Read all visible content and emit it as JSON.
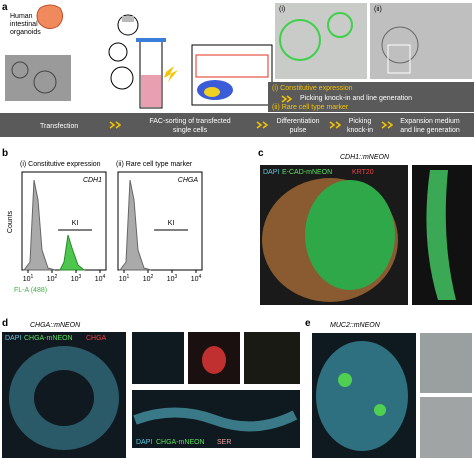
{
  "panels": {
    "a": {
      "label": "a",
      "organoid_text": [
        "Human",
        "intestinal",
        "organoids"
      ],
      "insets": [
        "(i)",
        "(ii)"
      ],
      "option_i": "(i) Constitutive expression",
      "option_i_step": "Picking knock-in and line generation",
      "option_ii": "(ii) Rare cell type marker",
      "steps": {
        "transfection": "Transfection",
        "facs": [
          "FAC-sorting of transfected",
          "single cells"
        ],
        "pulse": [
          "Differentiation",
          "pulse"
        ],
        "picking": [
          "Picking",
          "knock-in"
        ],
        "expansion": [
          "Expansion medium",
          "and line generation"
        ]
      }
    },
    "b": {
      "label": "b",
      "ylabel": "Counts",
      "xlabel": "FL-A (488)",
      "plots": [
        {
          "title": "(i) Constitutive expression",
          "gene": "CDH1",
          "gate": "KI",
          "xticks": [
            {
              "base": "10",
              "exp": "1"
            },
            {
              "base": "10",
              "exp": "2"
            },
            {
              "base": "10",
              "exp": "3"
            },
            {
              "base": "10",
              "exp": "4"
            }
          ]
        },
        {
          "title": "(ii) Rare cell type marker",
          "gene": "CHGA",
          "gate": "KI",
          "xticks": [
            {
              "base": "10",
              "exp": "1"
            },
            {
              "base": "10",
              "exp": "2"
            },
            {
              "base": "10",
              "exp": "3"
            },
            {
              "base": "10",
              "exp": "4"
            }
          ]
        }
      ]
    },
    "c": {
      "label": "c",
      "title": "CDH1::mNEON",
      "legend": [
        "DAPI",
        "E-CAD-mNEON",
        "KRT20"
      ]
    },
    "d": {
      "label": "d",
      "title": "CHGA::mNEON",
      "legend": [
        "DAPI",
        "CHGA-mNEON",
        "CHGA"
      ],
      "legend2": [
        "DAPI",
        "CHGA-mNEON",
        "SER"
      ]
    },
    "e": {
      "label": "e",
      "title": "MUC2::mNEON"
    }
  }
}
